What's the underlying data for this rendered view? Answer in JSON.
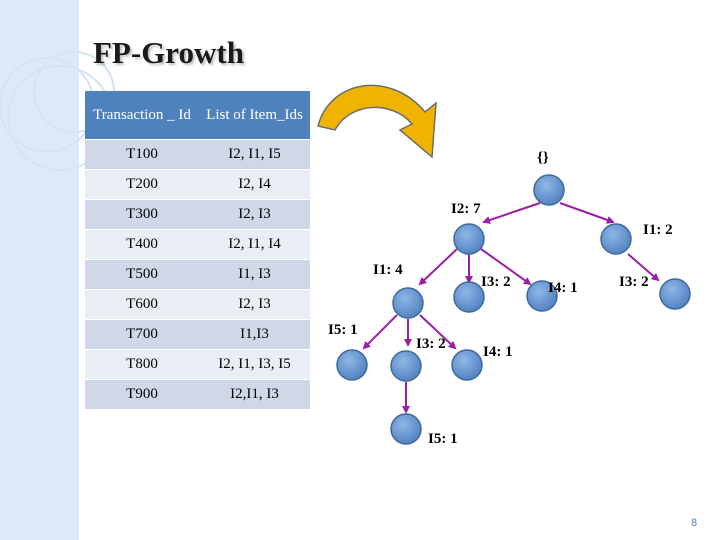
{
  "slide": {
    "title": "FP-Growth",
    "page_number": "8"
  },
  "table": {
    "headers": [
      "Transaction _ Id",
      "List of Item_Ids"
    ],
    "rows": [
      [
        "T100",
        "I2, I1, I5"
      ],
      [
        "T200",
        "I2, I4"
      ],
      [
        "T300",
        "I2, I3"
      ],
      [
        "T400",
        "I2, I1, I4"
      ],
      [
        "T500",
        "I1, I3"
      ],
      [
        "T600",
        "I2, I3"
      ],
      [
        "T700",
        "I1,I3"
      ],
      [
        "T800",
        "I2, I1, I3, I5"
      ],
      [
        "T900",
        "I2,I1, I3"
      ]
    ]
  },
  "tree": {
    "root": "{}",
    "labels": {
      "i2": "I2: 7",
      "i1_root": "I1: 2",
      "i1": "I1: 4",
      "i3_under_i2": "I3: 2",
      "i4_under_i2": "I4: 1",
      "i3_under_i1root": "I3: 2",
      "i5_under_i1": "I5: 1",
      "i3_under_i1": "I3: 2",
      "i4_under_i1": "I4: 1",
      "i5_under_i3": "I5: 1"
    },
    "colors": {
      "node": "#5a8fd0",
      "edge": "#9b1fa6",
      "arrow": "#f0b400"
    }
  }
}
